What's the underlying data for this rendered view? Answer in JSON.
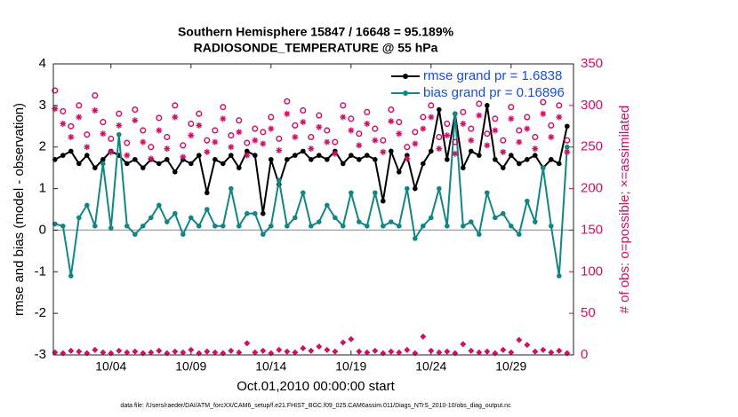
{
  "chart_data": {
    "type": "line",
    "title": "Southern Hemisphere 15847 / 16648 = 95.189%",
    "subtitle": "RADIOSONDE_TEMPERATURE @ 55 hPa",
    "ylabel": "rmse and bias (model - observation)",
    "y2label": "# of obs: o=possible; ×=assimilated",
    "xlabel": "Oct.01,2010 00:00:00 start",
    "footnote": "data file: /Users/raeder/DAI/ATM_forcXX/CAM6_setup/f.e21.FHIST_BGC.f09_025.CAM6assim.011/Diags_NTrS_2010-10/obs_diag_output.nc",
    "legend": "upper right",
    "xlim": [
      -0.6,
      31.9
    ],
    "xticks": [
      {
        "value": 3,
        "label": "10/04"
      },
      {
        "value": 8,
        "label": "10/09"
      },
      {
        "value": 13,
        "label": "10/14"
      },
      {
        "value": 18,
        "label": "10/19"
      },
      {
        "value": 23,
        "label": "10/24"
      },
      {
        "value": 28,
        "label": "10/29"
      }
    ],
    "ylim": [
      -3,
      4
    ],
    "yticks": [
      -3,
      -2,
      -1,
      0,
      1,
      2,
      3,
      4
    ],
    "y2lim": [
      0,
      350
    ],
    "y2ticks": [
      0,
      50,
      100,
      150,
      200,
      250,
      300,
      350
    ],
    "x": [
      -0.5,
      0,
      0.5,
      1,
      1.5,
      2,
      2.5,
      3,
      3.5,
      4,
      4.5,
      5,
      5.5,
      6,
      6.5,
      7,
      7.5,
      8,
      8.5,
      9,
      9.5,
      10,
      10.5,
      11,
      11.5,
      12,
      12.5,
      13,
      13.5,
      14,
      14.5,
      15,
      15.5,
      16,
      16.5,
      17,
      17.5,
      18,
      18.5,
      19,
      19.5,
      20,
      20.5,
      21,
      21.5,
      22,
      22.5,
      23,
      23.5,
      24,
      24.5,
      25,
      25.5,
      26,
      26.5,
      27,
      27.5,
      28,
      28.5,
      29,
      29.5,
      30,
      30.5,
      31,
      31.5
    ],
    "series": [
      {
        "name": "rmse grand pr = 1.6838",
        "color": "#000000",
        "marker": "dot",
        "line": true,
        "values": [
          1.7,
          1.8,
          1.9,
          1.6,
          1.8,
          1.5,
          1.7,
          1.9,
          1.8,
          1.6,
          1.7,
          1.5,
          1.7,
          1.6,
          1.7,
          1.4,
          1.7,
          1.6,
          1.8,
          0.9,
          1.7,
          1.6,
          1.8,
          1.5,
          1.9,
          1.8,
          0.4,
          1.7,
          1.1,
          1.7,
          1.8,
          1.9,
          1.7,
          1.8,
          1.7,
          1.9,
          1.6,
          1.8,
          1.7,
          1.8,
          1.7,
          0.7,
          1.9,
          1.4,
          1.8,
          1.0,
          1.6,
          1.9,
          2.9,
          1.7,
          2.8,
          1.5,
          1.9,
          1.8,
          3.0,
          1.7,
          1.5,
          1.8,
          1.6,
          1.7,
          1.8,
          1.5,
          1.7,
          1.6,
          2.5
        ]
      },
      {
        "name": "bias grand pr = 0.16896",
        "color": "#138585",
        "marker": "dot",
        "line": true,
        "values": [
          0.15,
          0.1,
          -1.1,
          0.3,
          0.6,
          0.1,
          1.6,
          0.05,
          2.3,
          0.1,
          -0.1,
          0.1,
          0.3,
          0.6,
          0.2,
          0.4,
          -0.1,
          0.3,
          0.1,
          0.5,
          0.1,
          0.1,
          1.0,
          0.1,
          0.4,
          0.4,
          -0.1,
          0.1,
          1.2,
          0.1,
          0.3,
          0.9,
          0.1,
          0.2,
          0.6,
          0.3,
          0.1,
          0.9,
          0.2,
          0.1,
          0.9,
          0.1,
          0.2,
          0.1,
          1.0,
          -0.2,
          0.1,
          0.3,
          1.0,
          0.1,
          2.8,
          0.1,
          0.2,
          -0.1,
          0.9,
          0.3,
          0.4,
          0.1,
          -0.1,
          0.7,
          0.2,
          1.5,
          0.1,
          -1.1,
          2.0
        ]
      },
      {
        "color": "#cc1166",
        "marker": "circle",
        "axis": "y2",
        "values": [
          318,
          293,
          275,
          300,
          265,
          312,
          280,
          260,
          290,
          255,
          295,
          270,
          250,
          285,
          262,
          300,
          252,
          278,
          290,
          258,
          270,
          298,
          264,
          282,
          255,
          272,
          268,
          286,
          260,
          305,
          276,
          294,
          262,
          288,
          270,
          256,
          300,
          284,
          266,
          292,
          272,
          258,
          295,
          280,
          250,
          268,
          286,
          300,
          262,
          278,
          256,
          292,
          272,
          302,
          266,
          284,
          258,
          298,
          270,
          286,
          262,
          304,
          276,
          300,
          258
        ]
      },
      {
        "color": "#cc1166",
        "marker": "star",
        "axis": "y2",
        "values": [
          296,
          278,
          262,
          286,
          250,
          294,
          266,
          244,
          276,
          240,
          282,
          256,
          236,
          270,
          248,
          286,
          238,
          264,
          276,
          244,
          256,
          284,
          250,
          268,
          240,
          258,
          254,
          272,
          246,
          290,
          262,
          280,
          248,
          274,
          256,
          242,
          286,
          270,
          252,
          278,
          258,
          244,
          281,
          266,
          236,
          254,
          272,
          286,
          248,
          264,
          242,
          278,
          258,
          288,
          252,
          270,
          244,
          284,
          256,
          272,
          248,
          290,
          262,
          286,
          244
        ]
      },
      {
        "color": "#cc1166",
        "marker": "diamond",
        "axis": "y2",
        "values": [
          3,
          2,
          5,
          4,
          2,
          6,
          3,
          2,
          5,
          3,
          4,
          2,
          3,
          5,
          2,
          4,
          3,
          6,
          2,
          4,
          3,
          2,
          5,
          3,
          14,
          3,
          5,
          2,
          6,
          4,
          3,
          8,
          5,
          10,
          6,
          4,
          15,
          19,
          4,
          3,
          5,
          2,
          4,
          3,
          6,
          2,
          22,
          5,
          3,
          4,
          2,
          13,
          5,
          3,
          4,
          2,
          6,
          3,
          18,
          12,
          4,
          6,
          3,
          5,
          2
        ]
      }
    ]
  }
}
